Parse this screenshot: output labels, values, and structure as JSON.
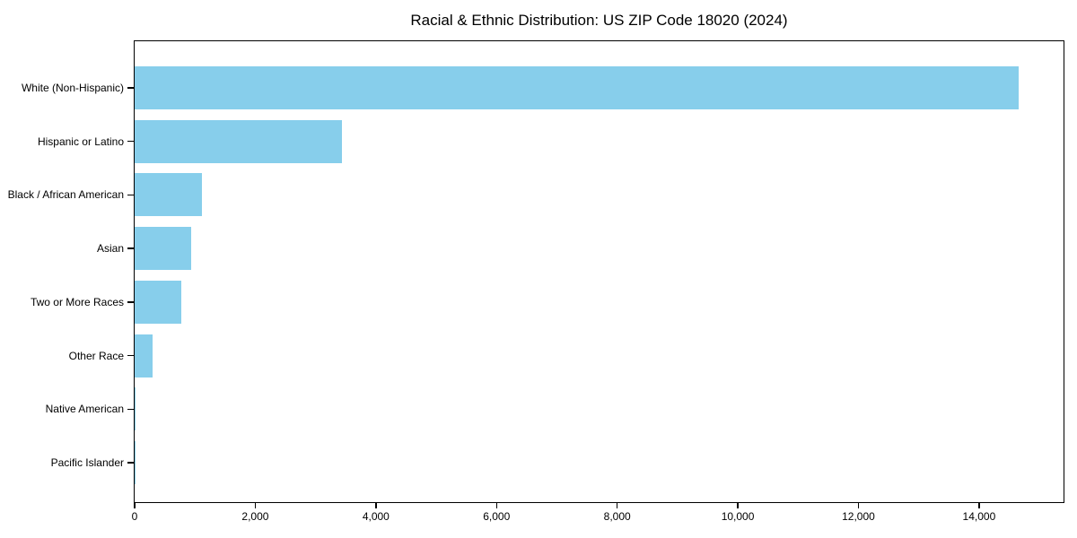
{
  "title": "Racial & Ethnic Distribution: US ZIP Code 18020 (2024)",
  "chart_data": {
    "type": "bar",
    "orientation": "horizontal",
    "title": "Racial & Ethnic Distribution: US ZIP Code 18020 (2024)",
    "categories": [
      "White (Non-Hispanic)",
      "Hispanic or Latino",
      "Black / African American",
      "Asian",
      "Two or More Races",
      "Other Race",
      "Native American",
      "Pacific Islander"
    ],
    "values": [
      14650,
      3430,
      1115,
      940,
      780,
      300,
      15,
      5
    ],
    "xlabel": "",
    "ylabel": "",
    "xlim": [
      0,
      15400
    ],
    "xticks": [
      0,
      2000,
      4000,
      6000,
      8000,
      10000,
      12000,
      14000
    ],
    "xtick_labels": [
      "0",
      "2,000",
      "4,000",
      "6,000",
      "8,000",
      "10,000",
      "12,000",
      "14,000"
    ],
    "bar_color": "#87CEEB",
    "grid": false,
    "legend": null
  },
  "colors": {
    "bar": "#87CEEB",
    "spine": "#000000",
    "text": "#000000",
    "background": "#ffffff"
  }
}
